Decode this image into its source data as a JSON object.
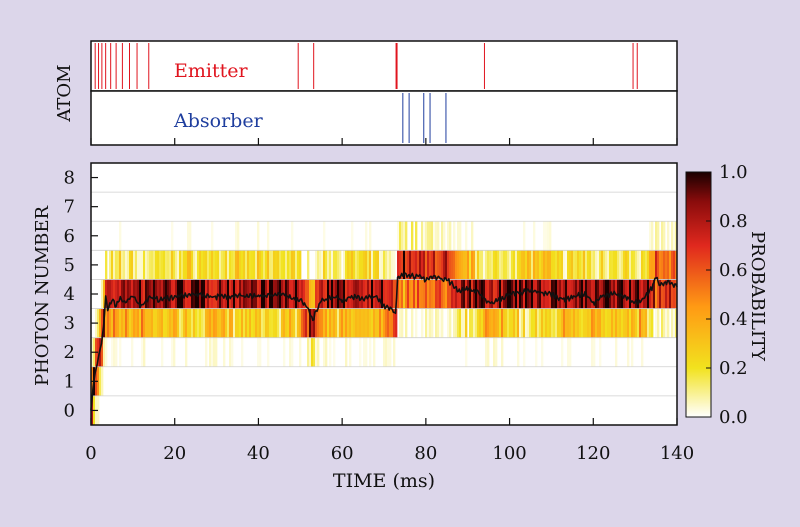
{
  "chart_data": [
    {
      "type": "event-raster",
      "ylabel": "ATOM",
      "xlim": [
        0,
        140
      ],
      "series": [
        {
          "name": "Emitter",
          "color": "#e0141e",
          "events_ms": [
            1.0,
            1.8,
            2.6,
            3.5,
            4.7,
            6.0,
            7.5,
            9.2,
            11.0,
            13.8,
            49.5,
            53.2,
            73.0,
            94.0,
            129.5,
            130.5
          ]
        },
        {
          "name": "Absorber",
          "color": "#1f3e9e",
          "events_ms": [
            74.5,
            76.0,
            79.5,
            81.0,
            84.8
          ]
        }
      ]
    },
    {
      "type": "heatmap",
      "xlabel": "TIME (ms)",
      "ylabel": "PHOTON NUMBER",
      "xlim": [
        0,
        140
      ],
      "ylim": [
        -0.5,
        8.5
      ],
      "x_ticks": [
        0,
        20,
        40,
        60,
        80,
        100,
        120,
        140
      ],
      "y_ticks": [
        0,
        1,
        2,
        3,
        4,
        5,
        6,
        7,
        8
      ],
      "colorbar": {
        "label": "PROBABILITY",
        "range": [
          0.0,
          1.0
        ],
        "ticks": [
          "0.0",
          "0.2",
          "0.4",
          "0.6",
          "0.8",
          "1.0"
        ],
        "colors": [
          "#ffffff",
          "#f2e21e",
          "#ff9a14",
          "#e0281e",
          "#8a0c0c",
          "#1a0000"
        ]
      },
      "mean_photon_number": {
        "color": "#111111",
        "x": [
          0,
          0.5,
          1,
          1.5,
          2,
          2.5,
          3,
          3.5,
          4,
          5,
          6,
          7,
          8,
          9,
          10,
          12,
          14,
          16,
          20,
          25,
          30,
          35,
          40,
          45,
          50,
          52,
          53,
          55,
          58,
          60,
          62,
          65,
          68,
          70,
          72,
          72.8,
          73.2,
          75,
          78,
          80,
          82,
          85,
          88,
          90,
          93,
          95,
          98,
          100,
          105,
          110,
          113,
          115,
          118,
          120,
          122,
          125,
          128,
          130,
          132,
          134,
          135,
          136,
          138,
          140
        ],
        "y": [
          0.0,
          0.8,
          1.3,
          1.6,
          2.0,
          2.3,
          2.9,
          3.9,
          3.5,
          3.8,
          3.6,
          3.9,
          3.7,
          3.8,
          3.9,
          3.6,
          3.9,
          3.8,
          3.9,
          4.0,
          3.9,
          3.95,
          3.9,
          4.0,
          3.8,
          3.5,
          3.1,
          3.8,
          3.9,
          3.8,
          3.9,
          3.85,
          3.9,
          3.6,
          3.5,
          3.3,
          4.5,
          4.7,
          4.6,
          4.5,
          4.6,
          4.5,
          4.1,
          4.2,
          4.0,
          3.7,
          3.8,
          4.0,
          4.1,
          4.0,
          3.8,
          3.9,
          4.0,
          3.7,
          3.9,
          4.0,
          3.9,
          3.7,
          3.8,
          4.2,
          4.6,
          4.3,
          4.4,
          4.3
        ]
      }
    }
  ]
}
